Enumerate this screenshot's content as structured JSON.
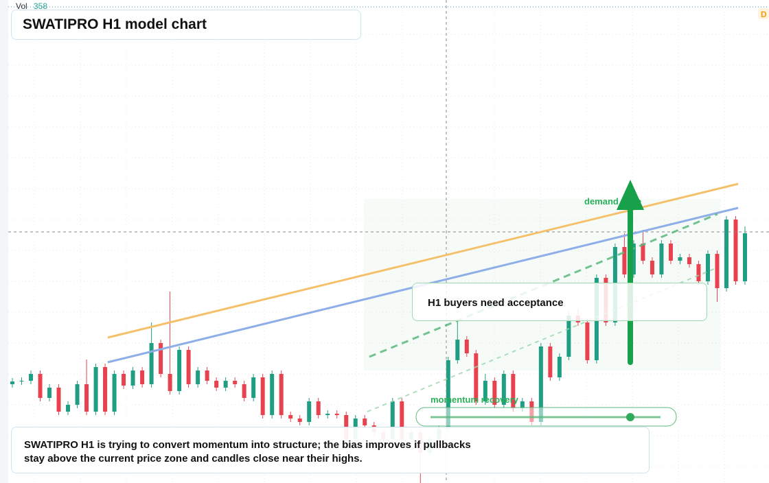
{
  "chart_data": {
    "type": "candlestick",
    "title": "SWATIPRO H1 model chart",
    "volume_label": "Vol",
    "volume_value": "358",
    "badge": "D",
    "zone_label": "demand zone",
    "callout": "H1 buyers need acceptance",
    "momentum_label": "momentum recovery",
    "note": "SWATIPRO H1 is trying to convert momentum into structure; the bias improves if pullbacks stay above the current price zone and candles close near their highs.",
    "up_color": "#1f9e84",
    "down_color": "#e8424f",
    "ylim": [
      0,
      704
    ],
    "open": [
      144,
      148,
      149,
      159,
      124,
      139,
      104,
      114,
      144,
      104,
      169,
      104,
      159,
      142,
      164,
      144,
      204,
      159,
      134,
      194,
      144,
      164,
      149,
      139,
      149,
      144,
      124,
      154,
      99,
      159,
      99,
      94,
      89,
      119,
      99,
      101,
      99,
      64,
      94,
      84,
      74,
      64,
      119,
      64,
      74,
      44,
      64,
      79,
      179,
      209,
      189,
      119,
      149,
      114,
      159,
      109,
      119,
      89,
      199,
      154,
      184,
      244,
      234,
      179,
      299,
      234,
      344,
      304,
      349,
      324,
      304,
      349,
      324,
      329,
      319,
      294,
      334,
      284,
      384,
      294
    ],
    "high": [
      153,
      154,
      164,
      164,
      144,
      144,
      119,
      149,
      180,
      174,
      174,
      164,
      164,
      169,
      169,
      234,
      209,
      279,
      199,
      199,
      169,
      169,
      154,
      154,
      154,
      149,
      159,
      159,
      164,
      164,
      104,
      99,
      124,
      124,
      106,
      106,
      104,
      99,
      99,
      89,
      79,
      124,
      124,
      79,
      79,
      69,
      84,
      184,
      239,
      214,
      194,
      159,
      154,
      164,
      164,
      124,
      124,
      204,
      204,
      189,
      249,
      254,
      239,
      304,
      304,
      349,
      364,
      354,
      369,
      329,
      354,
      354,
      334,
      334,
      324,
      339,
      339,
      389,
      389,
      374
    ],
    "low": [
      139,
      143,
      144,
      119,
      119,
      99,
      99,
      109,
      99,
      99,
      99,
      99,
      137,
      137,
      139,
      139,
      154,
      129,
      129,
      139,
      139,
      144,
      134,
      134,
      139,
      119,
      119,
      94,
      94,
      94,
      89,
      84,
      84,
      94,
      94,
      94,
      59,
      59,
      79,
      69,
      59,
      59,
      59,
      59,
      0,
      39,
      59,
      74,
      174,
      184,
      114,
      114,
      109,
      109,
      104,
      104,
      84,
      84,
      149,
      149,
      179,
      229,
      174,
      174,
      229,
      229,
      299,
      299,
      319,
      299,
      299,
      319,
      319,
      314,
      289,
      289,
      264,
      279,
      289,
      289
    ],
    "close": [
      148,
      149,
      159,
      124,
      139,
      104,
      114,
      144,
      104,
      169,
      104,
      159,
      142,
      164,
      144,
      204,
      159,
      134,
      194,
      144,
      164,
      149,
      139,
      149,
      144,
      124,
      154,
      99,
      159,
      99,
      94,
      89,
      119,
      99,
      101,
      99,
      64,
      94,
      84,
      74,
      64,
      119,
      64,
      74,
      44,
      64,
      79,
      179,
      209,
      189,
      119,
      149,
      114,
      159,
      109,
      119,
      89,
      199,
      154,
      184,
      244,
      234,
      179,
      299,
      234,
      344,
      304,
      349,
      324,
      304,
      349,
      324,
      329,
      319,
      294,
      334,
      284,
      384,
      294,
      364
    ]
  }
}
